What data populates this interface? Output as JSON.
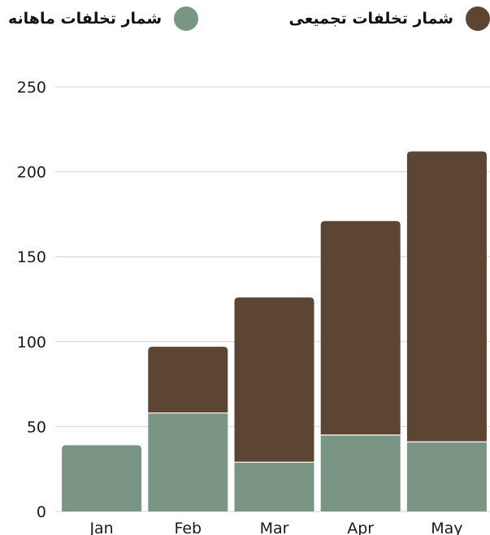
{
  "legend": {
    "cumulative_label": "شمار تخلفات تجمیعی",
    "monthly_label": "شمار تخلفات ماهانه"
  },
  "colors": {
    "cumulative": "#5c4533",
    "monthly": "#7b9585",
    "grid": "#d4d4d4",
    "text": "#1a1a1a"
  },
  "chart_data": {
    "type": "bar",
    "stacked": true,
    "categories": [
      "Jan",
      "Feb",
      "Mar",
      "Apr",
      "May"
    ],
    "series": [
      {
        "name": "شمار تخلفات ماهانه",
        "values": [
          39,
          58,
          29,
          45,
          41
        ]
      },
      {
        "name": "شمار تخلفات تجمیعی",
        "values": [
          0,
          39,
          97,
          126,
          171
        ]
      }
    ],
    "totals": [
      39,
      97,
      126,
      171,
      212
    ],
    "ylim": [
      0,
      250
    ],
    "yticks": [
      0,
      50,
      100,
      150,
      200,
      250
    ],
    "grid": true,
    "legend_position": "top"
  }
}
